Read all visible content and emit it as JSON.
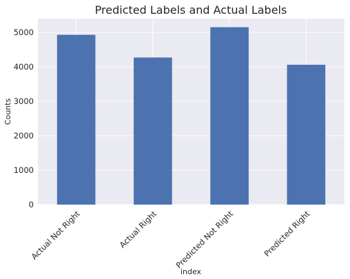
{
  "chart_data": {
    "type": "bar",
    "title": "Predicted Labels and Actual Labels",
    "xlabel": "index",
    "ylabel": "Counts",
    "categories": [
      "Actual Not Right",
      "Actual Right",
      "Predicted Not Right",
      "Predicted Right"
    ],
    "values": [
      4930,
      4270,
      5150,
      4060
    ],
    "ylim": [
      0,
      5400
    ],
    "yticks": [
      0,
      1000,
      2000,
      3000,
      4000,
      5000
    ],
    "grid": true,
    "legend": "none",
    "colors": {
      "bar": "#4c72b0",
      "background": "#eaeaf2",
      "grid": "#ffffff"
    }
  }
}
